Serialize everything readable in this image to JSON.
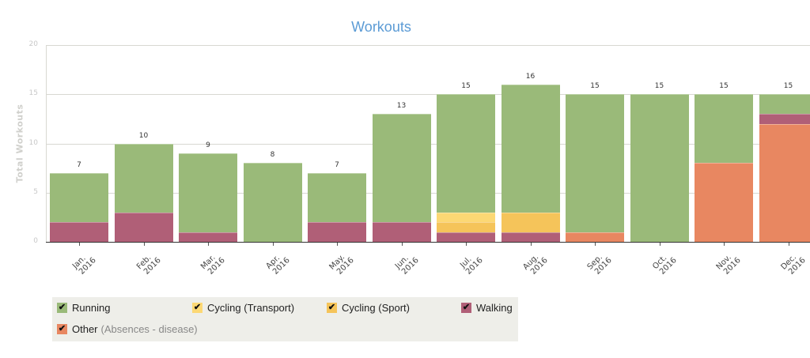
{
  "chart_data": {
    "type": "bar",
    "stacked": true,
    "title": "Workouts",
    "xlabel": "",
    "ylabel": "Total Workouts",
    "ylim": [
      0,
      20
    ],
    "yticks": [
      0,
      5,
      10,
      15,
      20
    ],
    "grid": true,
    "legend_position": "bottom-left",
    "categories": [
      "Jan. 2016",
      "Feb. 2016",
      "Mar. 2016",
      "Apr. 2016",
      "May. 2016",
      "Jun. 2016",
      "Jul. 2016",
      "Aug. 2016",
      "Sep. 2016",
      "Oct. 2016",
      "Nov. 2016",
      "Dec. 2016"
    ],
    "category_lines": [
      [
        "Jan.",
        "2016"
      ],
      [
        "Feb.",
        "2016"
      ],
      [
        "Mar.",
        "2016"
      ],
      [
        "Apr.",
        "2016"
      ],
      [
        "May.",
        "2016"
      ],
      [
        "Jun.",
        "2016"
      ],
      [
        "Jul.",
        "2016"
      ],
      [
        "Aug.",
        "2016"
      ],
      [
        "Sep.",
        "2016"
      ],
      [
        "Oct.",
        "2016"
      ],
      [
        "Nov.",
        "2016"
      ],
      [
        "Dec.",
        "2016"
      ]
    ],
    "series": [
      {
        "name": "Other",
        "note": "(Absences - disease)",
        "color": "#e88761",
        "values": [
          0,
          0,
          0,
          0,
          0,
          0,
          0,
          0,
          1,
          0,
          8,
          12
        ]
      },
      {
        "name": "Walking",
        "color": "#b05f77",
        "values": [
          2,
          3,
          1,
          0,
          2,
          2,
          1,
          1,
          0,
          0,
          0,
          1
        ]
      },
      {
        "name": "Cycling (Sport)",
        "color": "#f5c45a",
        "values": [
          0,
          0,
          0,
          0,
          0,
          0,
          1,
          2,
          0,
          0,
          0,
          0
        ]
      },
      {
        "name": "Cycling (Transport)",
        "color": "#fcd874",
        "values": [
          0,
          0,
          0,
          0,
          0,
          0,
          1,
          0,
          0,
          0,
          0,
          0
        ]
      },
      {
        "name": "Running",
        "color": "#9aba79",
        "values": [
          5,
          7,
          8,
          8,
          5,
          11,
          12,
          13,
          14,
          15,
          7,
          2
        ]
      }
    ],
    "totals": [
      7,
      10,
      9,
      8,
      7,
      13,
      15,
      16,
      15,
      15,
      15,
      15
    ]
  },
  "legend": {
    "items": [
      {
        "label": "Running",
        "color": "#9aba79",
        "check": "✔",
        "note": ""
      },
      {
        "label": "Cycling (Transport)",
        "color": "#fcd874",
        "check": "✔",
        "note": ""
      },
      {
        "label": "Cycling (Sport)",
        "color": "#f5c45a",
        "check": "✔",
        "note": ""
      },
      {
        "label": "Walking",
        "color": "#b05f77",
        "check": "✔",
        "note": ""
      },
      {
        "label": "Other",
        "color": "#e88761",
        "check": "✔",
        "note": "(Absences - disease)"
      }
    ]
  }
}
